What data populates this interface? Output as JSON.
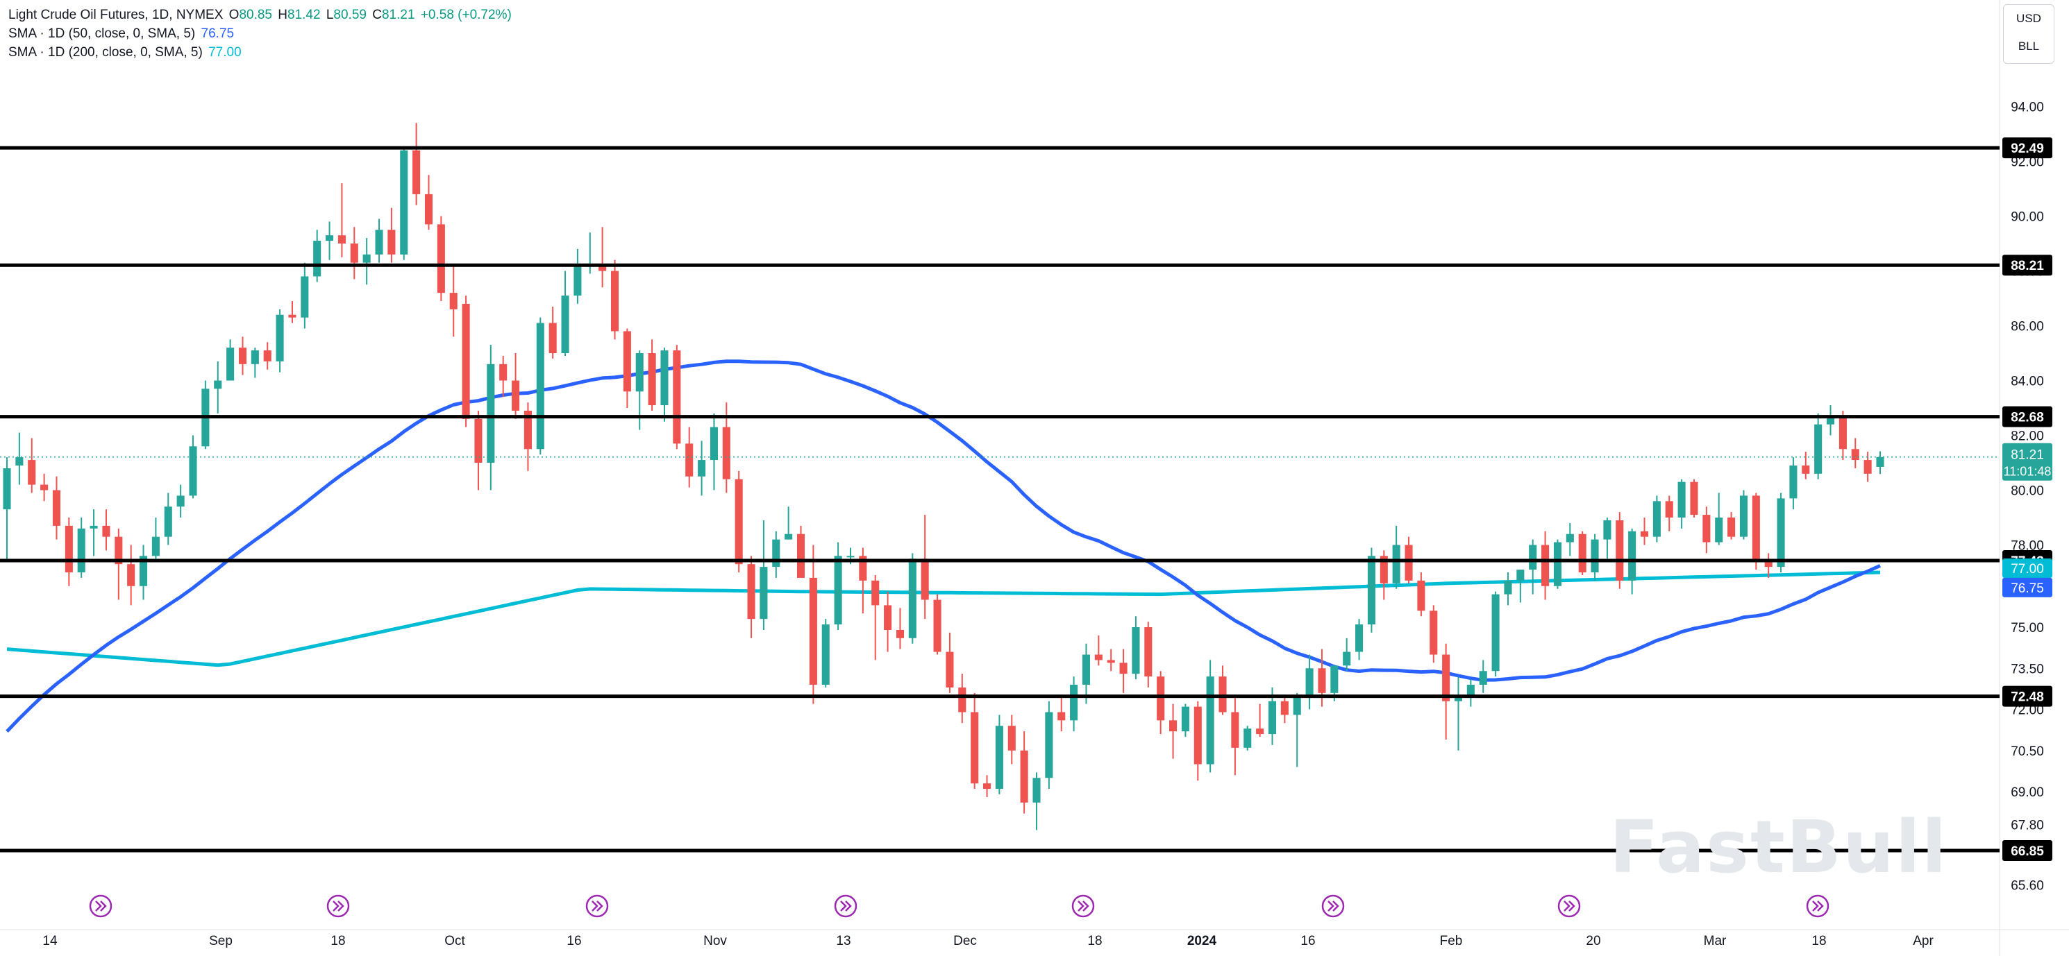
{
  "legend": {
    "title": "Light Crude Oil Futures, 1D, NYMEX",
    "o_label": "O",
    "o_value": "80.85",
    "h_label": "H",
    "h_value": "81.42",
    "l_label": "L",
    "l_value": "80.59",
    "c_label": "C",
    "c_value": "81.21",
    "change": "+0.58 (+0.72%)",
    "sma50_label": "SMA · 1D (50, close, 0, SMA, 5)",
    "sma50_value": "76.75",
    "sma200_label": "SMA · 1D (200, close, 0, SMA, 5)",
    "sma200_value": "77.00"
  },
  "unit_box": {
    "currency": "USD",
    "unit": "BLL"
  },
  "watermark": "FastBull",
  "colors": {
    "up": "#26a69a",
    "down": "#ef5350",
    "sma50": "#2962ff",
    "sma200": "#00bcd4",
    "hline": "#000000",
    "price_tag": "#26a69a",
    "event_icon": "#9c27b0"
  },
  "chart_data": {
    "type": "candlestick",
    "symbol": "Light Crude Oil Futures, 1D, NYMEX",
    "ylim": [
      64.9,
      95.0
    ],
    "y_ticks": [
      "94.00",
      "92.00",
      "90.00",
      "88.00",
      "86.00",
      "84.00",
      "82.00",
      "80.00",
      "78.00",
      "75.00",
      "73.50",
      "72.00",
      "70.50",
      "69.00",
      "67.80",
      "65.60"
    ],
    "x_ticks": [
      "14",
      "Sep",
      "18",
      "Oct",
      "16",
      "Nov",
      "13",
      "Dec",
      "18",
      "2024",
      "16",
      "Feb",
      "20",
      "Mar",
      "18",
      "Apr"
    ],
    "x_ticks_bold": [
      "2024"
    ],
    "horizontal_levels": [
      "92.49",
      "88.21",
      "82.68",
      "77.43",
      "72.48",
      "66.85"
    ],
    "last_price": {
      "value": "81.21",
      "countdown": "11:01:48"
    },
    "sma50_tag": "76.75",
    "sma200_tag": "77.00",
    "event_count": 8,
    "candles": [
      [
        79.3,
        81.2,
        77.4,
        80.8
      ],
      [
        80.9,
        82.1,
        80.2,
        81.2
      ],
      [
        81.1,
        81.9,
        79.9,
        80.2
      ],
      [
        80.2,
        80.6,
        79.6,
        80.0
      ],
      [
        80.0,
        80.5,
        78.2,
        78.7
      ],
      [
        78.7,
        79.0,
        76.5,
        77.0
      ],
      [
        77.0,
        79.0,
        76.8,
        78.6
      ],
      [
        78.6,
        79.3,
        77.6,
        78.7
      ],
      [
        78.7,
        79.3,
        77.8,
        78.3
      ],
      [
        78.3,
        78.6,
        76.0,
        77.3
      ],
      [
        77.3,
        78.0,
        75.8,
        76.5
      ],
      [
        76.5,
        78.0,
        76.0,
        77.6
      ],
      [
        77.6,
        79.0,
        77.5,
        78.3
      ],
      [
        78.3,
        79.9,
        78.0,
        79.4
      ],
      [
        79.4,
        80.2,
        79.0,
        79.8
      ],
      [
        79.8,
        82.0,
        79.7,
        81.6
      ],
      [
        81.6,
        84.0,
        81.5,
        83.7
      ],
      [
        83.7,
        84.7,
        82.8,
        84.0
      ],
      [
        84.0,
        85.5,
        84.0,
        85.2
      ],
      [
        85.2,
        85.6,
        84.2,
        84.6
      ],
      [
        84.6,
        85.2,
        84.1,
        85.1
      ],
      [
        85.1,
        85.4,
        84.4,
        84.7
      ],
      [
        84.7,
        86.6,
        84.3,
        86.4
      ],
      [
        86.4,
        86.9,
        86.1,
        86.3
      ],
      [
        86.3,
        88.3,
        85.9,
        87.8
      ],
      [
        87.8,
        89.5,
        87.6,
        89.1
      ],
      [
        89.1,
        89.8,
        88.4,
        89.3
      ],
      [
        89.3,
        91.2,
        88.5,
        89.0
      ],
      [
        89.0,
        89.6,
        87.7,
        88.3
      ],
      [
        88.3,
        89.2,
        87.5,
        88.6
      ],
      [
        88.6,
        89.9,
        88.3,
        89.5
      ],
      [
        89.5,
        90.3,
        88.3,
        88.6
      ],
      [
        88.6,
        92.5,
        88.4,
        92.4
      ],
      [
        92.4,
        93.4,
        90.4,
        90.8
      ],
      [
        90.8,
        91.5,
        89.5,
        89.7
      ],
      [
        89.7,
        90.0,
        86.9,
        87.2
      ],
      [
        87.2,
        88.2,
        85.6,
        86.6
      ],
      [
        86.8,
        87.1,
        82.3,
        82.6
      ],
      [
        82.6,
        82.9,
        80.0,
        81.0
      ],
      [
        81.0,
        85.3,
        80.0,
        84.6
      ],
      [
        84.6,
        84.9,
        83.4,
        84.0
      ],
      [
        84.0,
        85.0,
        82.6,
        82.9
      ],
      [
        82.9,
        83.2,
        80.7,
        81.5
      ],
      [
        81.5,
        86.3,
        81.3,
        86.1
      ],
      [
        86.1,
        86.7,
        84.8,
        85.0
      ],
      [
        85.0,
        88.0,
        84.9,
        87.1
      ],
      [
        87.1,
        88.8,
        86.8,
        88.2
      ],
      [
        88.2,
        89.4,
        87.9,
        88.2
      ],
      [
        88.2,
        89.6,
        87.4,
        88.0
      ],
      [
        88.0,
        88.4,
        85.5,
        85.8
      ],
      [
        85.8,
        85.9,
        83.0,
        83.6
      ],
      [
        83.6,
        85.1,
        82.2,
        85.0
      ],
      [
        85.0,
        85.5,
        82.9,
        83.1
      ],
      [
        83.1,
        85.2,
        82.5,
        85.1
      ],
      [
        85.1,
        85.3,
        81.5,
        81.7
      ],
      [
        81.7,
        82.3,
        80.1,
        80.5
      ],
      [
        80.5,
        81.8,
        79.8,
        81.1
      ],
      [
        81.1,
        82.8,
        80.0,
        82.3
      ],
      [
        82.3,
        83.2,
        79.9,
        80.4
      ],
      [
        80.4,
        80.7,
        77.0,
        77.3
      ],
      [
        77.3,
        77.6,
        74.6,
        75.3
      ],
      [
        75.3,
        78.9,
        74.9,
        77.2
      ],
      [
        77.2,
        78.5,
        76.8,
        78.2
      ],
      [
        78.2,
        79.4,
        78.2,
        78.4
      ],
      [
        78.4,
        78.7,
        76.8,
        76.8
      ],
      [
        76.8,
        78.0,
        72.2,
        72.9
      ],
      [
        72.9,
        75.3,
        72.8,
        75.1
      ],
      [
        75.1,
        78.1,
        74.9,
        77.6
      ],
      [
        77.6,
        77.9,
        77.3,
        77.6
      ],
      [
        77.6,
        77.9,
        75.5,
        76.7
      ],
      [
        76.7,
        76.9,
        73.8,
        75.8
      ],
      [
        75.8,
        76.3,
        74.1,
        74.9
      ],
      [
        74.9,
        75.7,
        74.2,
        74.6
      ],
      [
        74.6,
        77.7,
        74.4,
        77.5
      ],
      [
        77.5,
        79.1,
        75.3,
        76.0
      ],
      [
        76.0,
        76.2,
        74.0,
        74.1
      ],
      [
        74.1,
        74.8,
        72.6,
        72.8
      ],
      [
        72.8,
        73.3,
        71.5,
        71.9
      ],
      [
        71.9,
        72.6,
        69.1,
        69.3
      ],
      [
        69.3,
        69.6,
        68.8,
        69.1
      ],
      [
        69.1,
        71.8,
        68.9,
        71.4
      ],
      [
        71.4,
        71.8,
        70.0,
        70.5
      ],
      [
        70.5,
        71.2,
        68.2,
        68.6
      ],
      [
        68.6,
        69.7,
        67.6,
        69.5
      ],
      [
        69.5,
        72.3,
        69.1,
        71.9
      ],
      [
        71.9,
        72.5,
        71.2,
        71.6
      ],
      [
        71.6,
        73.2,
        71.2,
        72.9
      ],
      [
        72.9,
        74.4,
        72.2,
        74.0
      ],
      [
        74.0,
        74.7,
        73.6,
        73.8
      ],
      [
        73.8,
        74.2,
        73.4,
        73.7
      ],
      [
        73.7,
        74.2,
        72.6,
        73.3
      ],
      [
        73.3,
        75.4,
        73.1,
        75.0
      ],
      [
        75.0,
        75.2,
        72.8,
        73.2
      ],
      [
        73.2,
        73.4,
        71.1,
        71.6
      ],
      [
        71.6,
        72.2,
        70.2,
        71.2
      ],
      [
        71.2,
        72.2,
        71.0,
        72.1
      ],
      [
        72.1,
        72.3,
        69.4,
        70.0
      ],
      [
        70.0,
        73.8,
        69.7,
        73.2
      ],
      [
        73.2,
        73.6,
        71.8,
        71.9
      ],
      [
        71.9,
        72.5,
        69.6,
        70.6
      ],
      [
        70.6,
        71.4,
        70.5,
        71.3
      ],
      [
        71.3,
        72.2,
        71.0,
        71.1
      ],
      [
        71.1,
        72.8,
        70.7,
        72.3
      ],
      [
        72.3,
        72.5,
        71.5,
        71.8
      ],
      [
        71.8,
        72.6,
        69.9,
        72.5
      ],
      [
        72.5,
        74.0,
        72.0,
        73.5
      ],
      [
        73.5,
        74.2,
        72.1,
        72.6
      ],
      [
        72.6,
        73.5,
        72.3,
        73.6
      ],
      [
        73.6,
        74.6,
        73.4,
        74.1
      ],
      [
        74.1,
        75.3,
        73.8,
        75.1
      ],
      [
        75.1,
        77.9,
        74.8,
        77.6
      ],
      [
        77.6,
        77.8,
        76.0,
        76.6
      ],
      [
        76.6,
        78.7,
        76.4,
        78.0
      ],
      [
        78.0,
        78.3,
        76.6,
        76.7
      ],
      [
        76.7,
        77.0,
        75.4,
        75.6
      ],
      [
        75.6,
        75.8,
        73.7,
        74.0
      ],
      [
        74.0,
        74.4,
        70.9,
        72.3
      ],
      [
        72.3,
        73.2,
        70.5,
        72.5
      ],
      [
        72.5,
        73.1,
        72.1,
        72.9
      ],
      [
        72.9,
        73.8,
        72.6,
        73.4
      ],
      [
        73.4,
        76.3,
        73.2,
        76.2
      ],
      [
        76.2,
        77.0,
        75.8,
        76.7
      ],
      [
        76.7,
        77.1,
        75.9,
        77.1
      ],
      [
        77.1,
        78.2,
        76.2,
        78.0
      ],
      [
        78.0,
        78.5,
        76.0,
        76.5
      ],
      [
        76.5,
        78.2,
        76.4,
        78.1
      ],
      [
        78.1,
        78.8,
        77.6,
        78.4
      ],
      [
        78.4,
        78.5,
        76.9,
        77.0
      ],
      [
        77.0,
        78.4,
        76.7,
        78.2
      ],
      [
        78.2,
        79.0,
        77.5,
        78.9
      ],
      [
        78.9,
        79.2,
        76.4,
        76.7
      ],
      [
        76.7,
        78.6,
        76.2,
        78.5
      ],
      [
        78.5,
        79.0,
        78.0,
        78.3
      ],
      [
        78.3,
        79.8,
        78.1,
        79.6
      ],
      [
        79.6,
        79.8,
        78.5,
        79.0
      ],
      [
        79.0,
        80.4,
        78.6,
        80.3
      ],
      [
        80.3,
        80.4,
        79.0,
        79.1
      ],
      [
        79.1,
        79.4,
        77.7,
        78.1
      ],
      [
        78.1,
        79.9,
        78.0,
        79.0
      ],
      [
        79.0,
        79.2,
        78.2,
        78.3
      ],
      [
        78.3,
        80.0,
        78.2,
        79.8
      ],
      [
        79.8,
        79.9,
        77.1,
        77.4
      ],
      [
        77.4,
        77.7,
        76.8,
        77.2
      ],
      [
        77.2,
        79.9,
        77.0,
        79.7
      ],
      [
        79.7,
        81.2,
        79.3,
        80.9
      ],
      [
        80.9,
        81.4,
        80.4,
        80.6
      ],
      [
        80.6,
        82.8,
        80.4,
        82.4
      ],
      [
        82.4,
        83.1,
        82.0,
        82.7
      ],
      [
        82.7,
        82.9,
        81.1,
        81.5
      ],
      [
        81.5,
        81.9,
        80.8,
        81.1
      ],
      [
        81.1,
        81.4,
        80.3,
        80.6
      ],
      [
        80.85,
        81.42,
        80.59,
        81.21
      ]
    ]
  }
}
